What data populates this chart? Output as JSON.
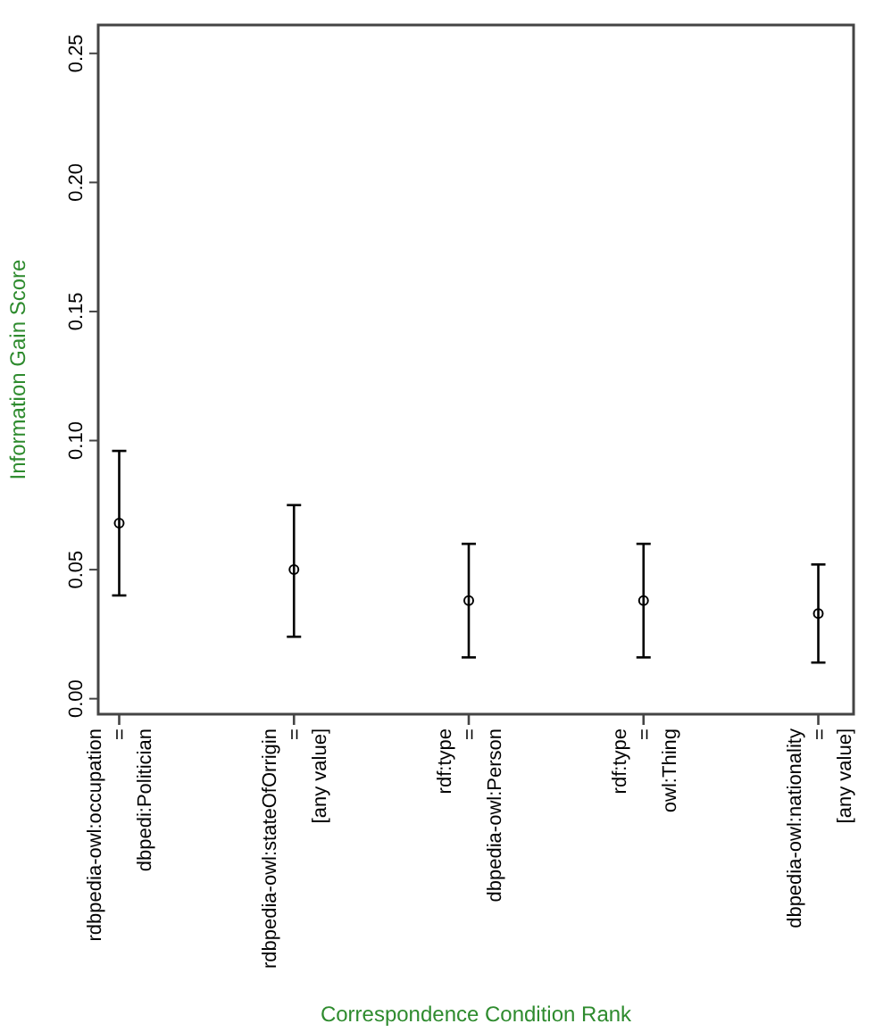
{
  "chart_data": {
    "type": "scatter",
    "xlabel": "Correspondence Condition Rank",
    "ylabel": "Information Gain Score",
    "categories": [
      "rdbpedia-owl:occupation\n=\ndbpedi:Politician",
      "rdbpedia-owl:stateOfOrrigin\n=\n[any value]",
      "rdf:type\n=\ndbpedia-owl:Person",
      "rdf:type\n=\nowl:Thing",
      "dbpedia-owl:nationality\n=\n[any value]"
    ],
    "values": [
      0.068,
      0.05,
      0.038,
      0.038,
      0.033
    ],
    "errors": [
      [
        0.04,
        0.096
      ],
      [
        0.024,
        0.075
      ],
      [
        0.016,
        0.06
      ],
      [
        0.016,
        0.06
      ],
      [
        0.014,
        0.052
      ]
    ],
    "color": "#000000",
    "marker": "circle",
    "ylim": [
      -0.006,
      0.261
    ],
    "yticks": [
      {
        "value": 0,
        "label": "0.00"
      },
      {
        "value": 0.05,
        "label": "0.05"
      },
      {
        "value": 0.1,
        "label": "0.10"
      },
      {
        "value": 0.15,
        "label": "0.15"
      },
      {
        "value": 0.2,
        "label": "0.20"
      },
      {
        "value": 0.25,
        "label": "0.25"
      }
    ],
    "grid": false
  }
}
